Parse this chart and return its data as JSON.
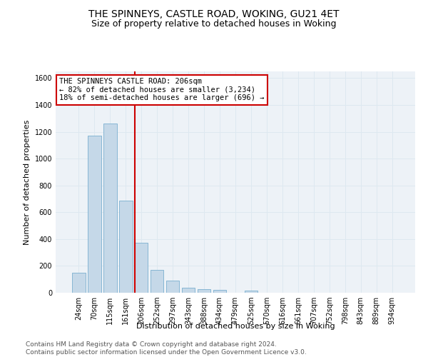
{
  "title": "THE SPINNEYS, CASTLE ROAD, WOKING, GU21 4ET",
  "subtitle": "Size of property relative to detached houses in Woking",
  "xlabel": "Distribution of detached houses by size in Woking",
  "ylabel": "Number of detached properties",
  "categories": [
    "24sqm",
    "70sqm",
    "115sqm",
    "161sqm",
    "206sqm",
    "252sqm",
    "297sqm",
    "343sqm",
    "388sqm",
    "434sqm",
    "479sqm",
    "525sqm",
    "570sqm",
    "616sqm",
    "661sqm",
    "707sqm",
    "752sqm",
    "798sqm",
    "843sqm",
    "889sqm",
    "934sqm"
  ],
  "values": [
    150,
    1170,
    1260,
    685,
    375,
    170,
    88,
    35,
    25,
    22,
    0,
    15,
    0,
    0,
    0,
    0,
    0,
    0,
    0,
    0,
    0
  ],
  "bar_color": "#c5d8e8",
  "bar_edgecolor": "#7aafcf",
  "vline_color": "#cc0000",
  "annotation_text": "THE SPINNEYS CASTLE ROAD: 206sqm\n← 82% of detached houses are smaller (3,234)\n18% of semi-detached houses are larger (696) →",
  "annotation_box_color": "#ffffff",
  "annotation_box_edgecolor": "#cc0000",
  "ylim": [
    0,
    1650
  ],
  "yticks": [
    0,
    200,
    400,
    600,
    800,
    1000,
    1200,
    1400,
    1600
  ],
  "grid_color": "#dde8f0",
  "background_color": "#edf2f7",
  "footer": "Contains HM Land Registry data © Crown copyright and database right 2024.\nContains public sector information licensed under the Open Government Licence v3.0.",
  "title_fontsize": 10,
  "subtitle_fontsize": 9,
  "axis_label_fontsize": 8,
  "tick_fontsize": 7,
  "annotation_fontsize": 7.5,
  "footer_fontsize": 6.5
}
